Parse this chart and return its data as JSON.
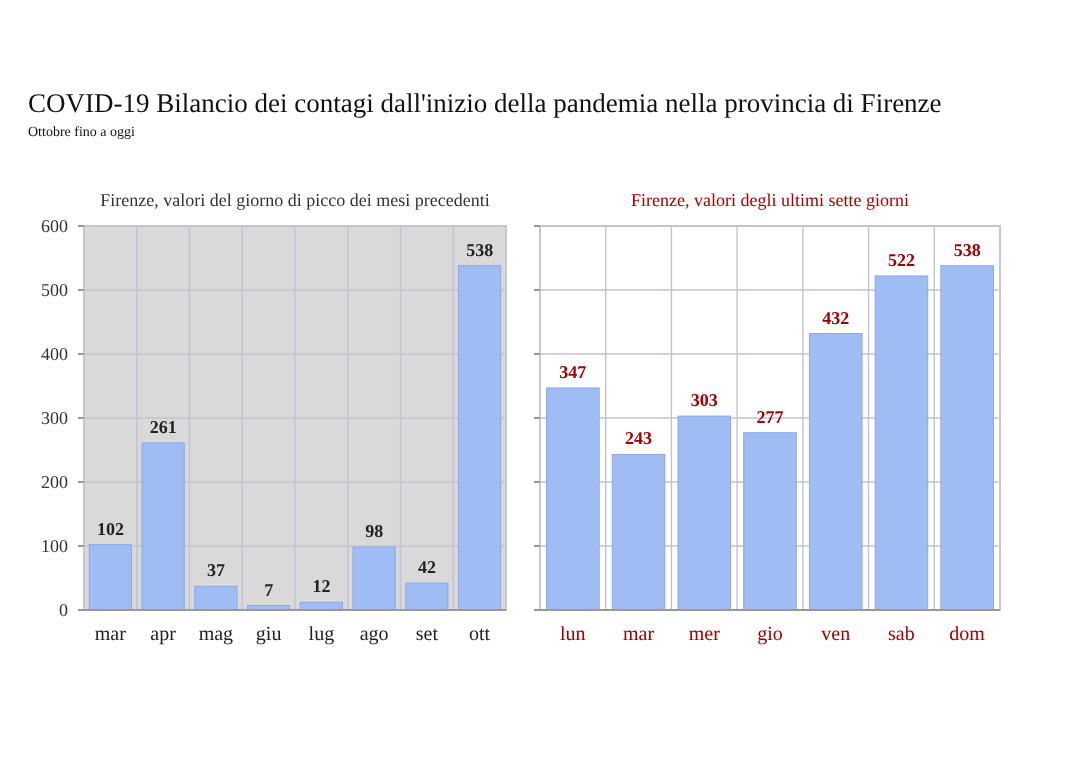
{
  "chart_data": [
    {
      "type": "bar",
      "title": "Firenze, valori del giorno di picco dei mesi precedenti",
      "annotations": [
        "COVID-19 Bilancio dei contagi dall'inizio della pandemia nella provincia di Firenze",
        "Ottobre fino a oggi"
      ],
      "categories": [
        "mar",
        "apr",
        "mag",
        "giu",
        "lug",
        "ago",
        "set",
        "ott"
      ],
      "values": [
        102,
        261,
        37,
        7,
        12,
        98,
        42,
        538
      ],
      "color": "#9fbcf5",
      "ylim": [
        0,
        600
      ],
      "yticks": [
        0,
        100,
        200,
        300,
        400,
        500,
        600
      ],
      "grid": true,
      "data_labels": true
    },
    {
      "type": "bar",
      "title": "Firenze, valori degli ultimi sette giorni",
      "categories": [
        "lun",
        "mar",
        "mer",
        "gio",
        "ven",
        "sab",
        "dom"
      ],
      "values": [
        347,
        243,
        303,
        277,
        432,
        522,
        538
      ],
      "color": "#9fbcf5",
      "ylim": [
        0,
        600
      ],
      "yticks": [
        {
          "value": 0,
          "label": null
        },
        {
          "value": 100,
          "label": null
        },
        {
          "value": 200,
          "label": null
        },
        {
          "value": 300,
          "label": null
        },
        {
          "value": 400,
          "label": null
        },
        {
          "value": 500,
          "label": null
        },
        {
          "value": 600,
          "label": null
        }
      ],
      "grid": true,
      "data_labels": true,
      "tick_labels": "x"
    }
  ]
}
